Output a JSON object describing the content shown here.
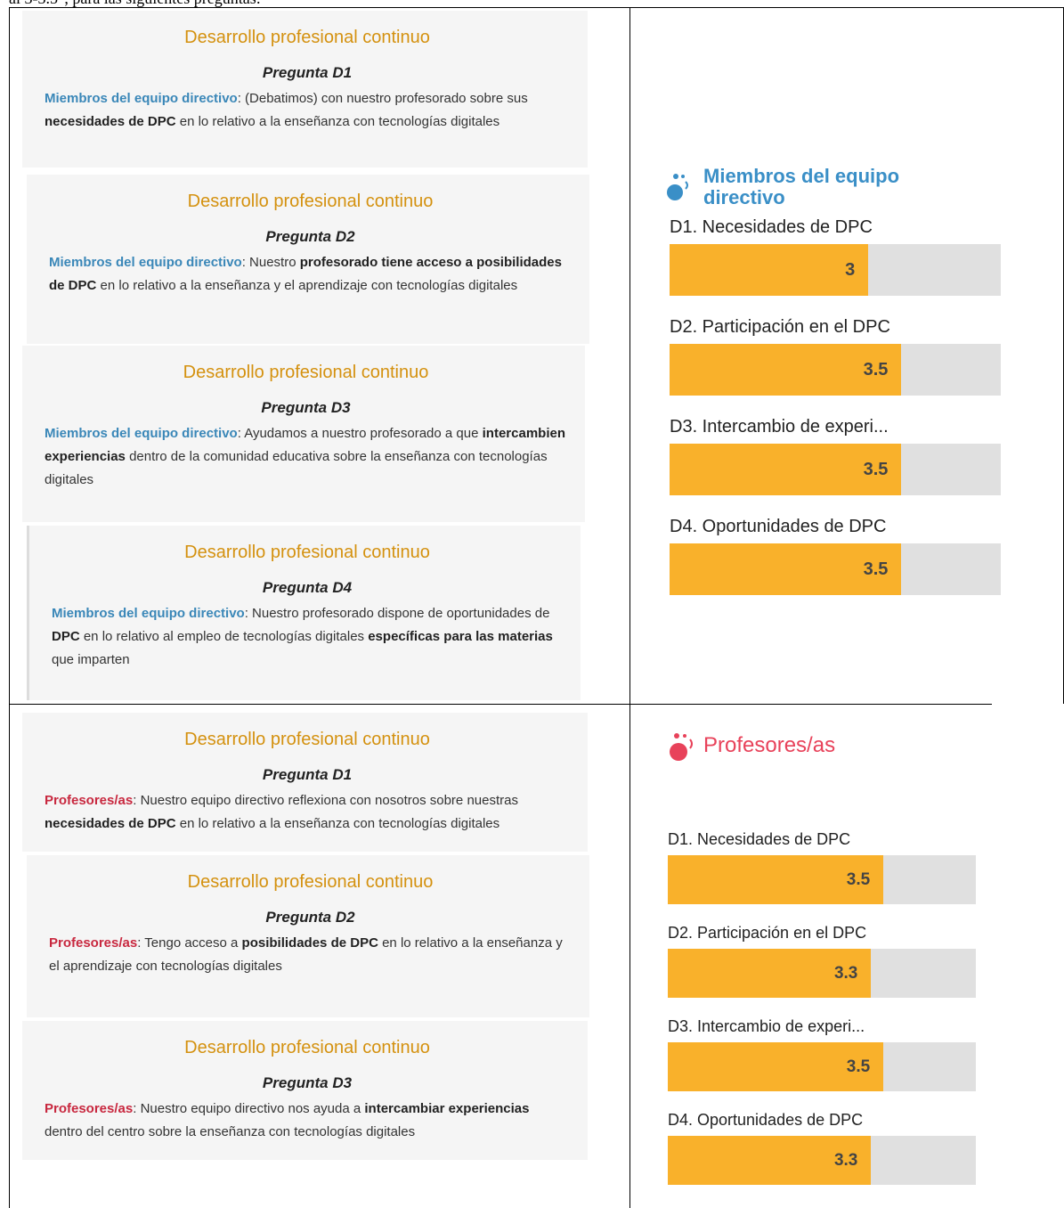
{
  "intro": "al 3-3.5\", para las siguientes preguntas:",
  "rows": [
    {
      "cards": [
        {
          "heading": "Desarrollo profesional continuo",
          "question": "Pregunta D1",
          "role": "Miembros del equipo directivo",
          "text": [
            {
              "text": ": (Debatimos) con nuestro profesorado sobre sus "
            },
            {
              "text": "necesidades de DPC",
              "bold": true
            },
            {
              "text": " en lo relativo a la enseñanza con tecnologías digitales"
            }
          ]
        },
        {
          "heading": "Desarrollo profesional continuo",
          "question": "Pregunta D2",
          "role": "Miembros del equipo directivo",
          "text": [
            {
              "text": ": Nuestro "
            },
            {
              "text": "profesorado tiene acceso a posibilidades de DPC",
              "bold": true
            },
            {
              "text": " en lo relativo a la enseñanza y el aprendizaje con tecnologías digitales"
            }
          ]
        },
        {
          "heading": "Desarrollo profesional continuo",
          "question": "Pregunta D3",
          "role": "Miembros del equipo directivo",
          "text": [
            {
              "text": ": Ayudamos a nuestro profesorado a que "
            },
            {
              "text": "intercambien experiencias",
              "bold": true
            },
            {
              "text": " dentro de la comunidad educativa sobre la enseñanza con tecnologías digitales"
            }
          ]
        },
        {
          "heading": "Desarrollo profesional continuo",
          "question": "Pregunta D4",
          "role": "Miembros del equipo directivo",
          "text": [
            {
              "text": ": Nuestro profesorado dispone de oportunidades de "
            },
            {
              "text": "DPC",
              "bold": true
            },
            {
              "text": " en lo relativo al empleo de tecnologías digitales "
            },
            {
              "text": "específicas para las materias",
              "bold": true
            },
            {
              "text": " que imparten"
            }
          ]
        }
      ],
      "chart": {
        "type": "bar",
        "title": "Miembros del equipo directivo",
        "categories": [
          "D1. Necesidades de DPC",
          "D2. Participación en el DPC",
          "D3. Intercambio de experi...",
          "D4. Oportunidades de DPC"
        ],
        "values": [
          3,
          3.5,
          3.5,
          3.5
        ],
        "xlim": [
          0,
          5
        ],
        "color": "#f9b12b"
      }
    },
    {
      "cards": [
        {
          "heading": "Desarrollo profesional continuo",
          "question": "Pregunta D1",
          "role": "Profesores/as",
          "text": [
            {
              "text": ": Nuestro equipo directivo reflexiona con nosotros sobre nuestras "
            },
            {
              "text": "necesidades de DPC",
              "bold": true
            },
            {
              "text": " en lo relativo a la enseñanza con tecnologías digitales"
            }
          ]
        },
        {
          "heading": "Desarrollo profesional continuo",
          "question": "Pregunta D2",
          "role": "Profesores/as",
          "text": [
            {
              "text": ": Tengo acceso a "
            },
            {
              "text": "posibilidades de DPC",
              "bold": true
            },
            {
              "text": " en lo relativo a la enseñanza y el aprendizaje con tecnologías digitales"
            }
          ]
        },
        {
          "heading": "Desarrollo profesional continuo",
          "question": "Pregunta D3",
          "role": "Profesores/as",
          "text": [
            {
              "text": ": Nuestro equipo directivo nos ayuda a "
            },
            {
              "text": "intercambiar experiencias",
              "bold": true
            },
            {
              "text": " dentro del centro sobre la enseñanza con tecnologías digitales"
            }
          ]
        }
      ],
      "chart": {
        "type": "bar",
        "title": "Profesores/as",
        "categories": [
          "D1. Necesidades de DPC",
          "D2. Participación en el DPC",
          "D3. Intercambio de experi...",
          "D4. Oportunidades de DPC"
        ],
        "values": [
          3.5,
          3.3,
          3.5,
          3.3
        ],
        "xlim": [
          0,
          5
        ],
        "color": "#f9b12b"
      }
    }
  ]
}
